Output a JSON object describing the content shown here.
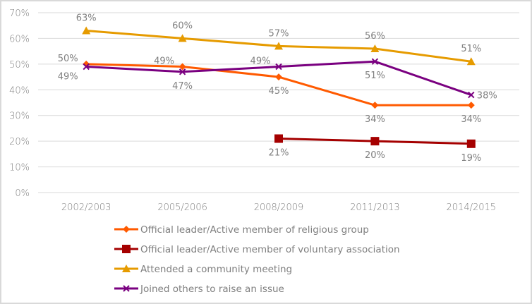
{
  "chart_data": {
    "type": "line",
    "title": "",
    "xlabel": "",
    "ylabel": "",
    "categories": [
      "2002/2003",
      "2005/2006",
      "2008/2009",
      "2011/2013",
      "2014/2015"
    ],
    "ylim": [
      0,
      70
    ],
    "yticks": [
      0,
      10,
      20,
      30,
      40,
      50,
      60,
      70
    ],
    "ytick_labels": [
      "0%",
      "10%",
      "20%",
      "30%",
      "40%",
      "50%",
      "60%",
      "70%"
    ],
    "grid": true,
    "legend_position": "bottom",
    "series": [
      {
        "name": "Official leader/Active member of religious group",
        "color": "#ff5a00",
        "marker": "diamond",
        "values": [
          50,
          49,
          45,
          34,
          34
        ],
        "labels": [
          "50%",
          "49%",
          "45%",
          "34%",
          "34%"
        ],
        "label_pos": [
          "above-left",
          "above-left",
          "below",
          "below",
          "below"
        ]
      },
      {
        "name": "Official leader/Active member of voluntary association",
        "color": "#a50000",
        "marker": "square",
        "values": [
          null,
          null,
          21,
          20,
          19
        ],
        "labels": [
          null,
          null,
          "21%",
          "20%",
          "19%"
        ],
        "label_pos": [
          null,
          null,
          "below",
          "below",
          "below"
        ]
      },
      {
        "name": "Attended a community meeting",
        "color": "#e69b00",
        "marker": "triangle",
        "values": [
          63,
          60,
          57,
          56,
          51
        ],
        "labels": [
          "63%",
          "60%",
          "57%",
          "56%",
          "51%"
        ],
        "label_pos": [
          "above",
          "above",
          "above",
          "above",
          "above"
        ]
      },
      {
        "name": "Joined others to raise an issue",
        "color": "#7a0080",
        "marker": "x",
        "values": [
          49,
          47,
          49,
          51,
          38
        ],
        "labels": [
          "49%",
          "47%",
          "49%",
          "51%",
          "38%"
        ],
        "label_pos": [
          "below-left",
          "below",
          "above-left",
          "below",
          "right"
        ]
      }
    ]
  }
}
